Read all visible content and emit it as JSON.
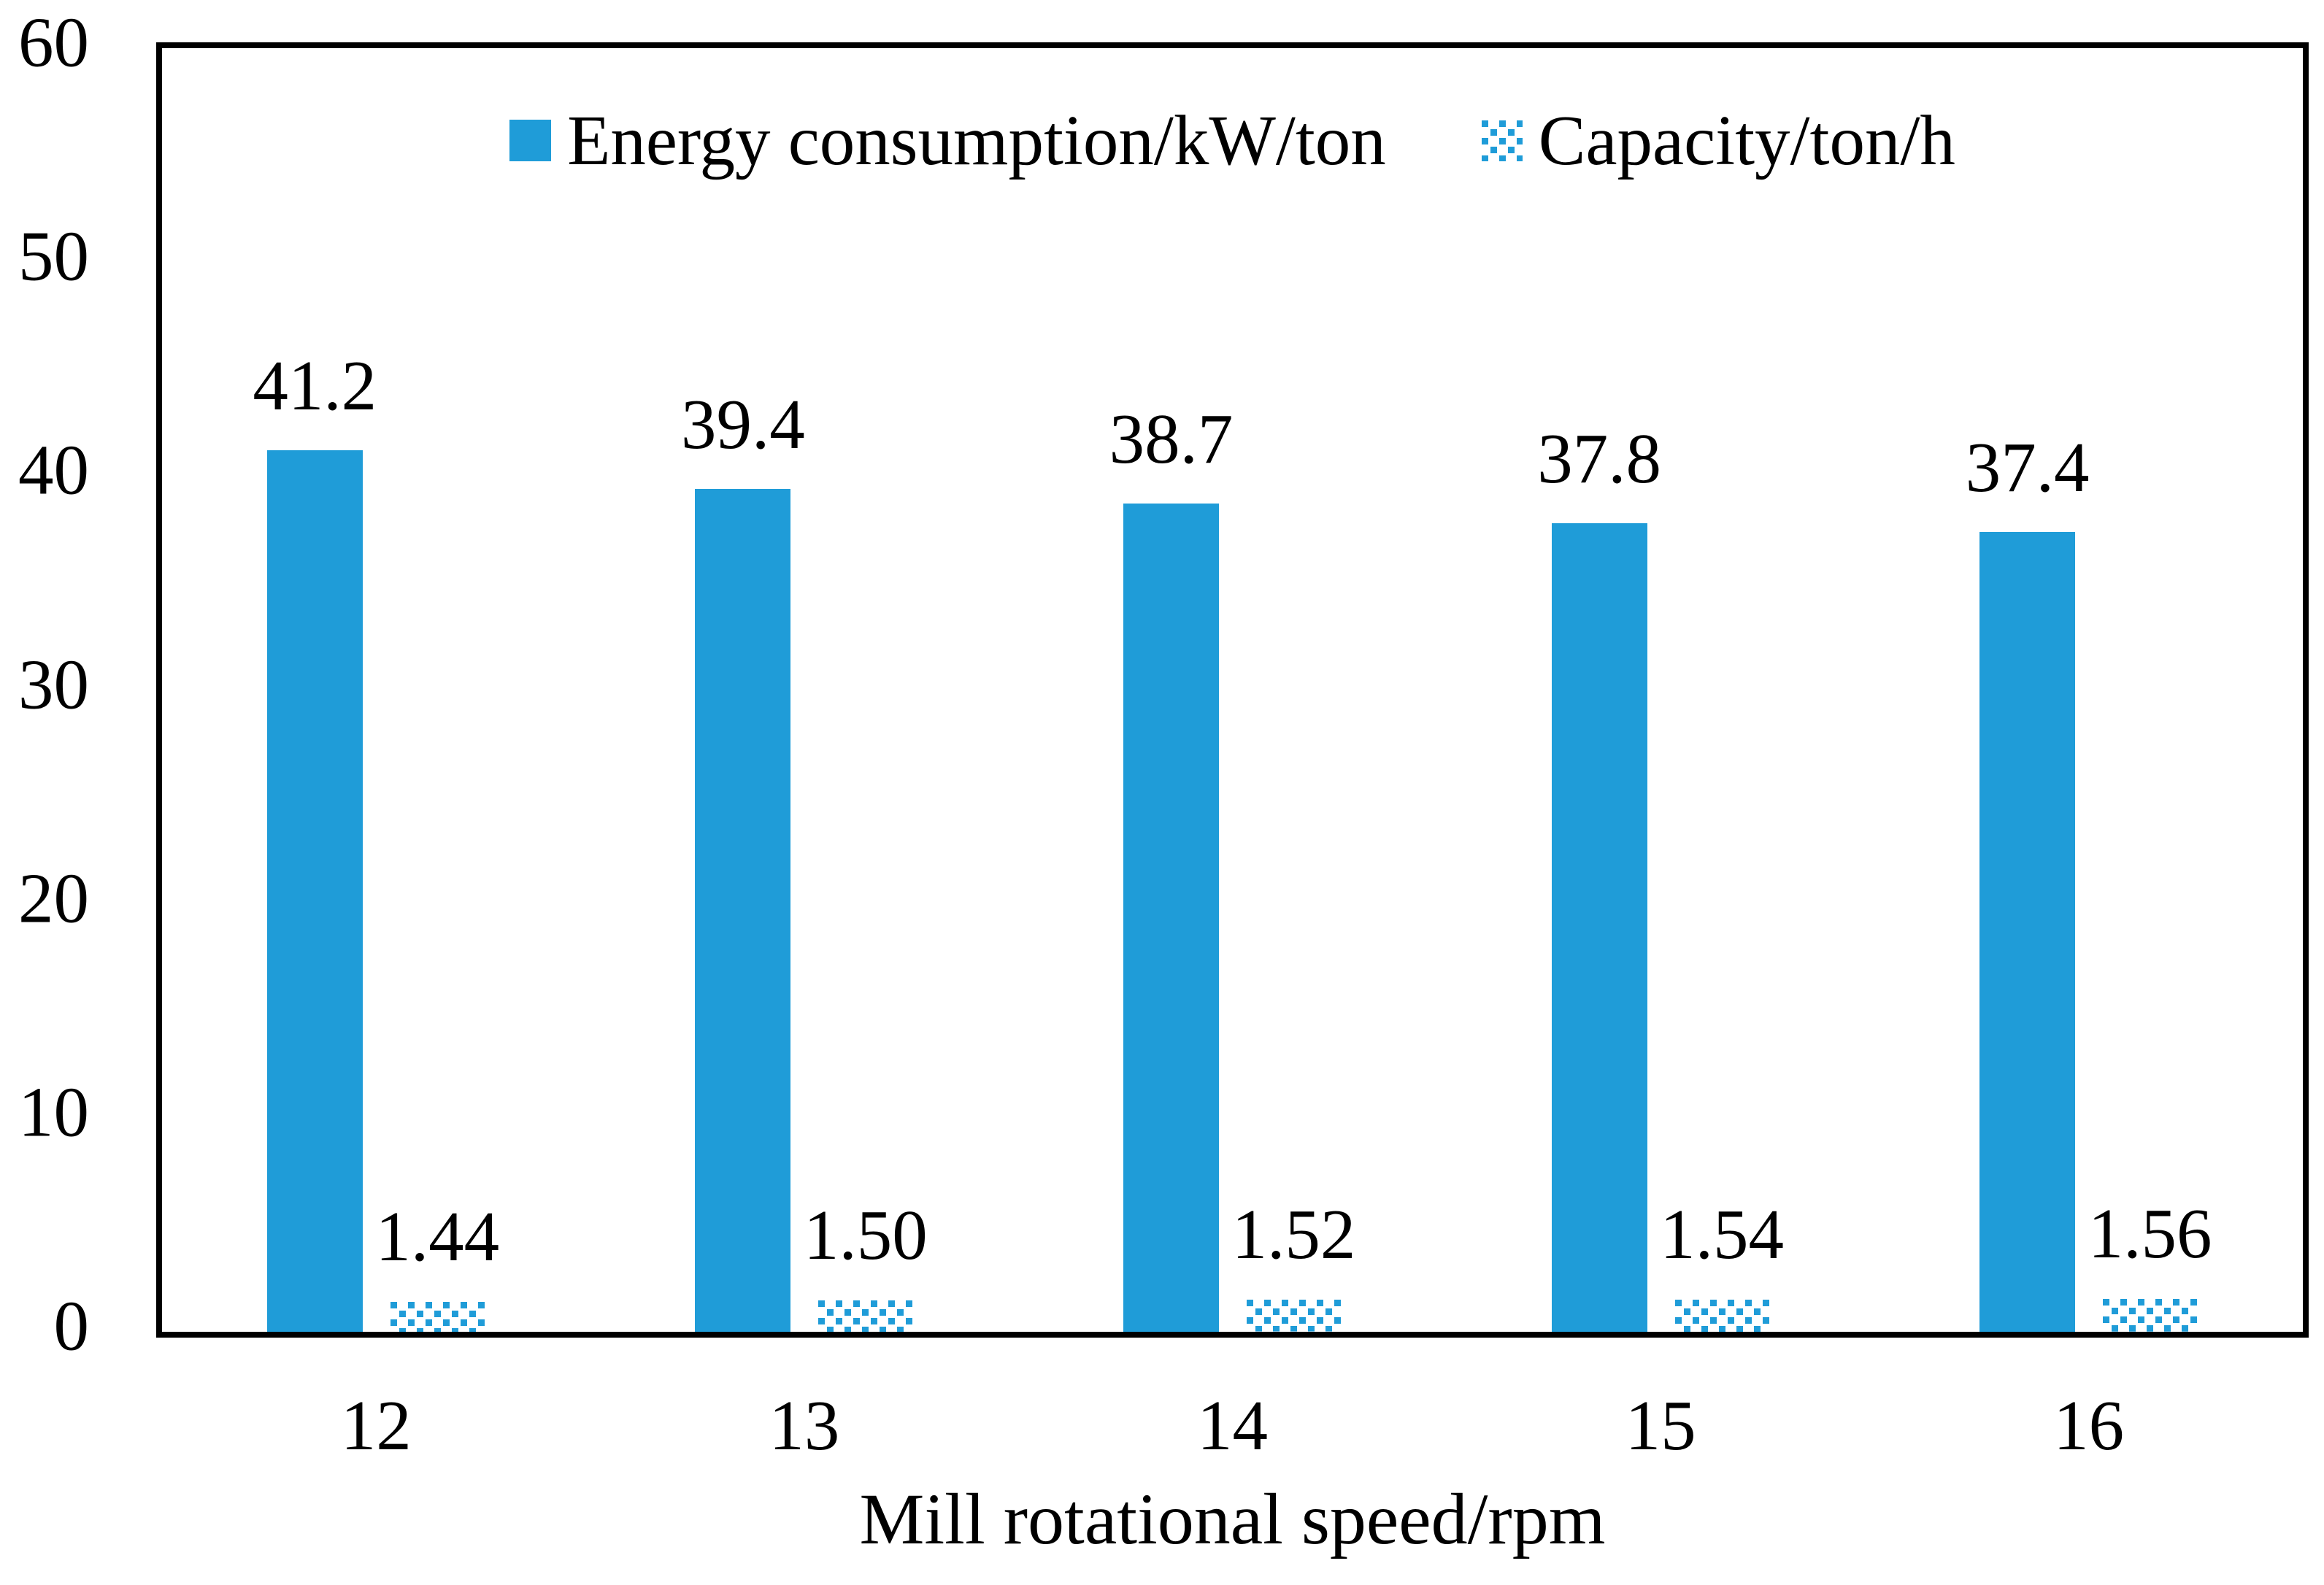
{
  "chart_data": {
    "type": "bar",
    "title": "",
    "xlabel": "Mill rotational speed/rpm",
    "ylabel": "",
    "ylim": [
      0,
      60
    ],
    "yticks": [
      0,
      10,
      20,
      30,
      40,
      50,
      60
    ],
    "categories": [
      "12",
      "13",
      "14",
      "15",
      "16"
    ],
    "series": [
      {
        "name": "Energy consumption/kW/ton",
        "pattern": "solid",
        "values": [
          41.2,
          39.4,
          38.7,
          37.8,
          37.4
        ],
        "labels": [
          "41.2",
          "39.4",
          "38.7",
          "37.8",
          "37.4"
        ]
      },
      {
        "name": "Capacity/ton/h",
        "pattern": "dotted",
        "values": [
          1.44,
          1.5,
          1.52,
          1.54,
          1.56
        ],
        "labels": [
          "1.44",
          "1.50",
          "1.52",
          "1.54",
          "1.56"
        ]
      }
    ],
    "legend_position": "top-center-inside",
    "grid": false,
    "colors": {
      "bar": "#1F9CD8",
      "text": "#000000",
      "axis_border": "#000000",
      "background": "#FFFFFF"
    }
  }
}
